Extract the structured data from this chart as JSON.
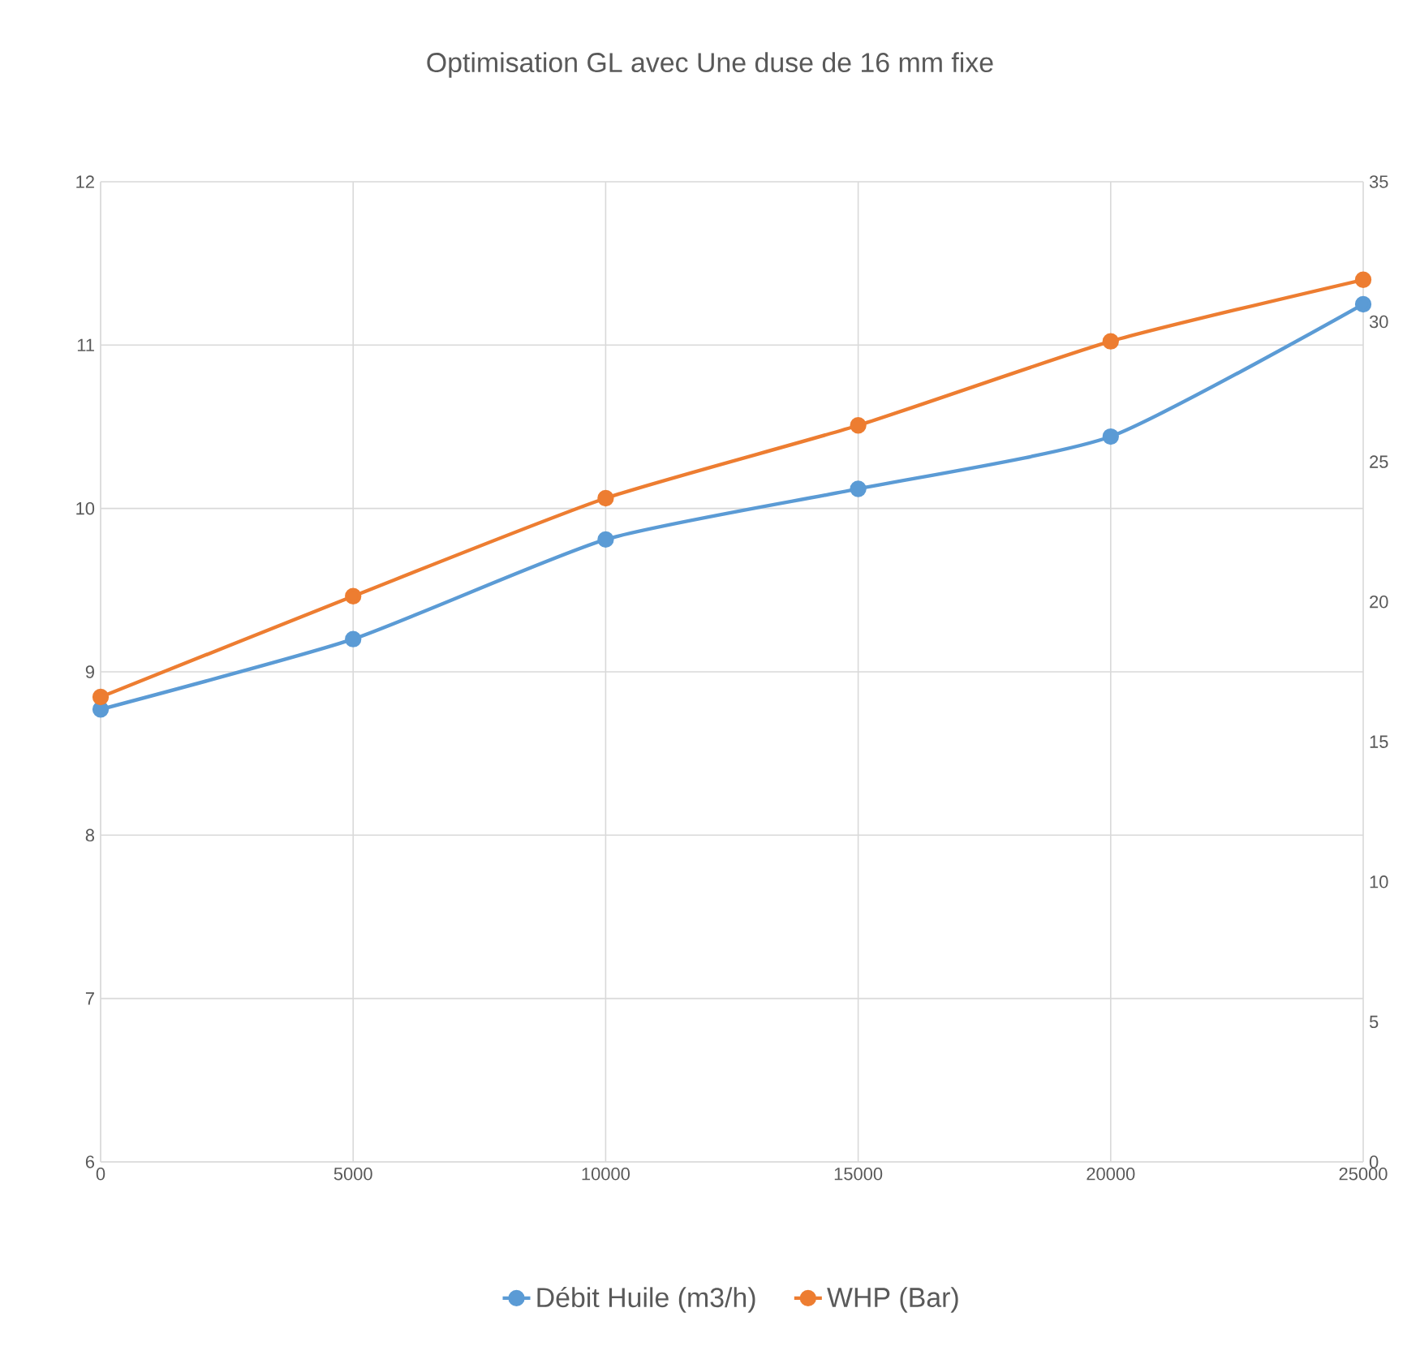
{
  "chart_data": {
    "type": "line",
    "title": "Optimisation GL avec Une duse de 16 mm fixe",
    "x": [
      0,
      5000,
      10000,
      15000,
      20000,
      25000
    ],
    "series": [
      {
        "name": "Débit Huile (m3/h)",
        "color": "#5b9bd5",
        "values": [
          8.77,
          9.2,
          9.81,
          10.12,
          10.44,
          11.25
        ]
      },
      {
        "name": "WHP (Bar)",
        "color": "#ed7d31",
        "axis": "y2",
        "values": [
          16.6,
          20.2,
          23.7,
          26.3,
          29.3,
          31.5
        ]
      }
    ],
    "xlim": [
      0,
      25000
    ],
    "xticks": [
      0,
      5000,
      10000,
      15000,
      20000,
      25000
    ],
    "ylim": [
      6,
      12
    ],
    "yticks": [
      6,
      7,
      8,
      9,
      10,
      11,
      12
    ],
    "y2lim": [
      0,
      35
    ],
    "y2ticks": [
      0,
      5,
      10,
      15,
      20,
      25,
      30,
      35
    ],
    "grid": true,
    "legend": "bottom",
    "marker": "circle"
  }
}
